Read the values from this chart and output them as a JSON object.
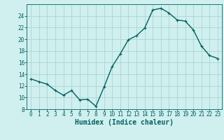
{
  "x": [
    0,
    1,
    2,
    3,
    4,
    5,
    6,
    7,
    8,
    9,
    10,
    11,
    12,
    13,
    14,
    15,
    16,
    17,
    18,
    19,
    20,
    21,
    22,
    23
  ],
  "y": [
    13.2,
    12.7,
    12.3,
    11.2,
    10.4,
    11.2,
    9.6,
    9.7,
    8.5,
    11.8,
    15.3,
    17.5,
    19.9,
    20.6,
    21.9,
    25.0,
    25.3,
    24.5,
    23.3,
    23.1,
    21.6,
    18.8,
    17.2,
    16.7
  ],
  "line_color": "#006060",
  "marker": "+",
  "marker_size": 3,
  "bg_color": "#d0efef",
  "grid_color": "#aad4d4",
  "xlabel": "Humidex (Indice chaleur)",
  "xlim": [
    -0.5,
    23.5
  ],
  "ylim": [
    8,
    26
  ],
  "yticks": [
    8,
    10,
    12,
    14,
    16,
    18,
    20,
    22,
    24
  ],
  "xticks": [
    0,
    1,
    2,
    3,
    4,
    5,
    6,
    7,
    8,
    9,
    10,
    11,
    12,
    13,
    14,
    15,
    16,
    17,
    18,
    19,
    20,
    21,
    22,
    23
  ],
  "tick_label_fontsize": 5.5,
  "xlabel_fontsize": 7.0,
  "axis_color": "#006060",
  "linewidth": 1.0,
  "markeredgewidth": 0.8
}
